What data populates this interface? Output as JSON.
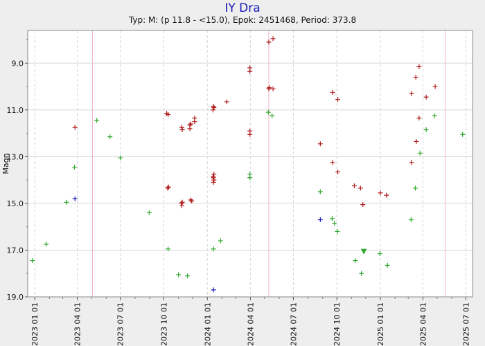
{
  "chart_data": {
    "type": "scatter",
    "title": "IY Dra",
    "subtitle": "Typ: M: (p 11.8 - <15.0), Epok: 2451468, Period: 373.8",
    "xlabel": "",
    "ylabel": "Magn",
    "xlim": [
      "2022-12-17",
      "2025-07-15"
    ],
    "ylim": [
      19.0,
      7.6
    ],
    "y_inverted": true,
    "grid": true,
    "legend": "none",
    "y_ticks": [
      9.0,
      11.0,
      13.0,
      15.0,
      17.0,
      19.0
    ],
    "y_tick_labels": [
      "9.0",
      "11.0",
      "13.0",
      "15.0",
      "17.0",
      "19.0"
    ],
    "x_ticks": [
      "2023-01-01",
      "2023-04-01",
      "2023-07-01",
      "2023-10-01",
      "2024-01-01",
      "2024-04-01",
      "2024-07-01",
      "2024-10-01",
      "2025-01-01",
      "2025-04-01",
      "2025-07-01"
    ],
    "x_tick_labels": [
      "2023 01 01",
      "2023 04 01",
      "2023 07 01",
      "2023 10 01",
      "2024 01 01",
      "2024 04 01",
      "2024 07 01",
      "2024 10 01",
      "2025 01 01",
      "2025 04 01",
      "2025 07 01"
    ],
    "maxima_lines": [
      "2023-05-03",
      "2024-05-10",
      "2025-05-18"
    ],
    "colors": {
      "observed": "#b01818",
      "fainter_than": "#2ea82e",
      "ccd": "#1a1ab8",
      "maxima_line": "#f0b4c8",
      "grid": "#d6d6d6",
      "plot_bg": "#ffffff",
      "page_bg": "#eeeeee",
      "title": "#1a1ab8"
    },
    "series": [
      {
        "kind": "observed",
        "marker": "plus",
        "points": [
          [
            "2023-03-27",
            11.75
          ],
          [
            "2023-10-07",
            11.15
          ],
          [
            "2023-10-10",
            11.2
          ],
          [
            "2023-10-09",
            14.35
          ],
          [
            "2023-10-11",
            14.3
          ],
          [
            "2023-11-08",
            11.75
          ],
          [
            "2023-11-09",
            11.85
          ],
          [
            "2023-11-07",
            15.0
          ],
          [
            "2023-11-08",
            15.1
          ],
          [
            "2023-11-09",
            14.95
          ],
          [
            "2023-11-25",
            11.8
          ],
          [
            "2023-11-25",
            11.65
          ],
          [
            "2023-11-27",
            11.6
          ],
          [
            "2023-11-27",
            14.85
          ],
          [
            "2023-11-29",
            14.9
          ],
          [
            "2023-12-05",
            11.5
          ],
          [
            "2023-12-05",
            11.35
          ],
          [
            "2024-01-13",
            11.0
          ],
          [
            "2024-01-14",
            10.85
          ],
          [
            "2024-01-15",
            10.9
          ],
          [
            "2024-01-13",
            13.85
          ],
          [
            "2024-01-14",
            13.9
          ],
          [
            "2024-01-15",
            13.75
          ],
          [
            "2024-01-14",
            14.1
          ],
          [
            "2024-01-15",
            14.0
          ],
          [
            "2024-02-11",
            10.65
          ],
          [
            "2024-03-31",
            9.2
          ],
          [
            "2024-03-31",
            9.35
          ],
          [
            "2024-03-31",
            11.9
          ],
          [
            "2024-03-31",
            12.05
          ],
          [
            "2024-05-10",
            8.1
          ],
          [
            "2024-05-10",
            10.1
          ],
          [
            "2024-05-11",
            10.05
          ],
          [
            "2024-05-19",
            7.95
          ],
          [
            "2024-05-19",
            10.1
          ],
          [
            "2024-08-27",
            12.45
          ],
          [
            "2024-09-22",
            10.25
          ],
          [
            "2024-09-22",
            13.25
          ],
          [
            "2024-10-03",
            10.55
          ],
          [
            "2024-10-03",
            13.65
          ],
          [
            "2024-11-07",
            14.25
          ],
          [
            "2024-11-20",
            14.35
          ],
          [
            "2024-11-25",
            15.05
          ],
          [
            "2025-01-01",
            14.55
          ],
          [
            "2025-01-14",
            14.65
          ],
          [
            "2025-03-08",
            10.3
          ],
          [
            "2025-03-08",
            13.25
          ],
          [
            "2025-03-17",
            9.6
          ],
          [
            "2025-03-18",
            12.35
          ],
          [
            "2025-03-24",
            9.15
          ],
          [
            "2025-03-24",
            11.35
          ],
          [
            "2025-04-08",
            10.45
          ],
          [
            "2025-04-27",
            10.0
          ]
        ]
      },
      {
        "kind": "fainter_than",
        "marker": "plus",
        "points": [
          [
            "2022-12-27",
            17.45
          ],
          [
            "2023-01-25",
            16.75
          ],
          [
            "2023-03-09",
            14.95
          ],
          [
            "2023-03-26",
            13.45
          ],
          [
            "2023-05-12",
            11.45
          ],
          [
            "2023-06-09",
            12.15
          ],
          [
            "2023-07-01",
            13.05
          ],
          [
            "2023-08-31",
            15.4
          ],
          [
            "2023-10-10",
            16.95
          ],
          [
            "2023-11-01",
            18.05
          ],
          [
            "2023-11-20",
            18.1
          ],
          [
            "2024-01-14",
            16.95
          ],
          [
            "2024-01-29",
            16.6
          ],
          [
            "2024-03-31",
            13.75
          ],
          [
            "2024-03-31",
            13.9
          ],
          [
            "2024-05-09",
            11.1
          ],
          [
            "2024-05-17",
            11.25
          ],
          [
            "2024-08-27",
            14.5
          ],
          [
            "2024-09-21",
            15.65
          ],
          [
            "2024-09-26",
            15.85
          ],
          [
            "2024-10-02",
            16.2
          ],
          [
            "2024-11-09",
            17.45
          ],
          [
            "2024-11-22",
            18.0
          ],
          [
            "2024-12-31",
            17.15
          ],
          [
            "2025-01-16",
            17.65
          ],
          [
            "2025-03-07",
            15.7
          ],
          [
            "2025-03-16",
            14.35
          ],
          [
            "2025-03-26",
            12.85
          ],
          [
            "2025-04-08",
            11.85
          ],
          [
            "2025-04-26",
            11.25
          ],
          [
            "2025-06-24",
            12.05
          ]
        ]
      },
      {
        "kind": "fainter_than_triangle",
        "marker": "triangle",
        "points": [
          [
            "2024-11-27",
            17.05
          ]
        ]
      },
      {
        "kind": "ccd",
        "marker": "plus",
        "points": [
          [
            "2023-03-27",
            14.8
          ],
          [
            "2024-01-14",
            18.7
          ],
          [
            "2024-08-27",
            15.7
          ]
        ]
      }
    ]
  }
}
